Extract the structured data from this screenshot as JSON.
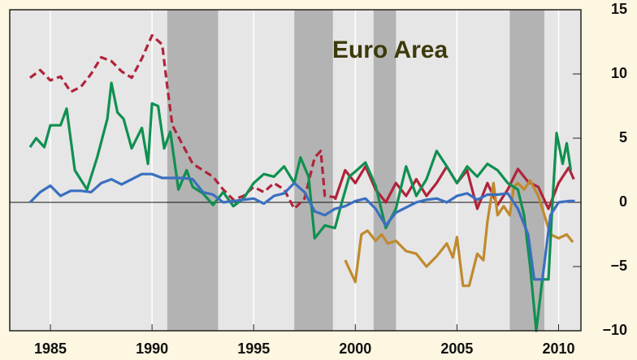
{
  "chart_data": {
    "type": "line",
    "title": "Euro Area",
    "xlim": [
      1983,
      2011.1
    ],
    "xticks": [
      1985,
      1990,
      1995,
      2000,
      2005,
      2010
    ],
    "ylim": [
      -10,
      15
    ],
    "yticks": [
      {
        "value": -10,
        "label": "−10"
      },
      {
        "value": -5,
        "label": "−5"
      },
      0,
      5,
      10,
      15
    ],
    "grid": true,
    "shade_color": "#b3b3b3",
    "shaded_periods": [
      [
        1990.75,
        1993.25
      ],
      [
        1997,
        1998.9
      ],
      [
        2000.9,
        2002
      ],
      [
        2007.6,
        2009.3
      ]
    ],
    "series": [
      {
        "color": "#b0243a",
        "style": "dashed",
        "x": [
          1984,
          1984.5,
          1985,
          1985.5,
          1986,
          1986.5,
          1987,
          1987.5,
          1988,
          1988.5,
          1989,
          1989.5,
          1990,
          1990.5,
          1990.75,
          1991,
          1991.5,
          1992,
          1992.5,
          1993,
          1993.5,
          1994,
          1994.5,
          1995,
          1995.5,
          1996,
          1996.5,
          1997,
          1997.5,
          1998,
          1998.3,
          1998.5,
          1999
        ],
        "values": [
          9.7,
          10.3,
          9.5,
          9.8,
          8.6,
          9,
          10,
          11.3,
          11,
          10.2,
          9.7,
          11.2,
          13,
          12.3,
          9,
          6,
          4.5,
          3,
          2.5,
          2,
          1,
          0.2,
          0.5,
          1.2,
          0.8,
          1.5,
          1,
          -0.5,
          0.3,
          3.5,
          4,
          0.5,
          0.4
        ]
      },
      {
        "color": "#b0243a",
        "style": "solid",
        "x": [
          1999,
          1999.5,
          2000,
          2000.5,
          2001,
          2001.5,
          2002,
          2002.5,
          2003,
          2003.5,
          2004,
          2004.5,
          2005,
          2005.5,
          2006,
          2006.5,
          2007,
          2007.5,
          2008,
          2008.5,
          2009,
          2009.5,
          2010,
          2010.5,
          2010.75
        ],
        "values": [
          0.2,
          2.5,
          1.5,
          2.8,
          1,
          0,
          1.5,
          0.5,
          1.8,
          0.5,
          1.5,
          2.8,
          1.5,
          2.5,
          -0.5,
          1.5,
          -0.2,
          1,
          2.6,
          1.6,
          1.2,
          -0.5,
          1.5,
          2.7,
          1.8
        ]
      },
      {
        "color": "#c08a2e",
        "style": "solid",
        "x": [
          1999.5,
          2000,
          2000.3,
          2000.6,
          2001,
          2001.3,
          2001.6,
          2002,
          2002.5,
          2003,
          2003.5,
          2004,
          2004.5,
          2004.8,
          2005,
          2005.3,
          2005.6,
          2006,
          2006.3,
          2006.5,
          2006.8,
          2007,
          2007.3,
          2007.6,
          2007.8,
          2008,
          2008.3,
          2008.6,
          2009,
          2009.3,
          2009.6,
          2010,
          2010.4,
          2010.7
        ],
        "values": [
          -4.5,
          -6.2,
          -2.5,
          -2.2,
          -3,
          -2.5,
          -3.2,
          -3,
          -3.8,
          -4,
          -5,
          -4.2,
          -3.2,
          -4.3,
          -2.7,
          -6.5,
          -6.5,
          -4,
          -4.5,
          -1.5,
          1.5,
          -1,
          -0.3,
          -1,
          1.2,
          1.5,
          1,
          1.7,
          0.5,
          -1,
          -2.5,
          -2.8,
          -2.5,
          -3.1
        ]
      },
      {
        "color": "#109050",
        "style": "solid",
        "x": [
          1984,
          1984.3,
          1984.7,
          1985,
          1985.5,
          1985.8,
          1986.2,
          1986.8,
          1987.3,
          1987.8,
          1988,
          1988.3,
          1988.6,
          1989,
          1989.5,
          1989.8,
          1990,
          1990.3,
          1990.6,
          1990.9,
          1991.3,
          1991.7,
          1992,
          1992.5,
          1993,
          1993.5,
          1994,
          1994.5,
          1995,
          1995.5,
          1996,
          1996.5,
          1997,
          1997.3,
          1997.7,
          1998,
          1998.5,
          1999,
          1999.3,
          1999.7,
          2000,
          2000.5,
          2001,
          2001.5,
          2002,
          2002.5,
          2003,
          2003.5,
          2004,
          2004.5,
          2005,
          2005.5,
          2006,
          2006.5,
          2007,
          2007.5,
          2008,
          2008.3,
          2008.6,
          2008.9,
          2009.2,
          2009.5,
          2009.7,
          2009.9,
          2010.2,
          2010.4,
          2010.6
        ],
        "values": [
          4.3,
          5,
          4.3,
          6,
          6,
          7.3,
          2.5,
          1,
          3.5,
          6.5,
          9.3,
          7,
          6.5,
          4.2,
          5.8,
          3,
          7.7,
          7.5,
          4.2,
          5.5,
          1,
          2.5,
          1.2,
          0.7,
          -0.2,
          0.8,
          -0.3,
          0.3,
          1.5,
          2.2,
          2,
          2.8,
          1.5,
          3.5,
          2,
          -2.8,
          -1.8,
          -2,
          -0.2,
          2,
          2.4,
          3.1,
          1.3,
          -2,
          -0.5,
          2.8,
          0.5,
          1.8,
          4,
          2.8,
          1.5,
          2.8,
          2,
          3,
          2.5,
          1.5,
          1,
          -1,
          -5,
          -10,
          -6,
          -6,
          0,
          5.4,
          3,
          4.6,
          2.5
        ]
      },
      {
        "color": "#3a6fc0",
        "style": "solid",
        "x": [
          1984,
          1984.5,
          1985,
          1985.5,
          1986,
          1986.5,
          1987,
          1987.5,
          1988,
          1988.5,
          1989,
          1989.5,
          1990,
          1990.5,
          1991,
          1991.5,
          1992,
          1992.5,
          1993,
          1993.5,
          1994,
          1994.5,
          1995,
          1995.5,
          1996,
          1996.5,
          1997,
          1997.5,
          1998,
          1998.5,
          1999,
          1999.5,
          2000,
          2000.5,
          2001,
          2001.5,
          2002,
          2002.5,
          2003,
          2003.5,
          2004,
          2004.5,
          2005,
          2005.5,
          2006,
          2006.5,
          2007,
          2007.5,
          2008,
          2008.5,
          2008.8,
          2009.2,
          2009.6,
          2010,
          2010.5,
          2010.8
        ],
        "values": [
          0,
          0.8,
          1.3,
          0.5,
          0.9,
          0.9,
          0.8,
          1.5,
          1.8,
          1.4,
          1.8,
          2.2,
          2.2,
          1.9,
          1.9,
          1.9,
          1.8,
          0.8,
          0.6,
          0,
          0.1,
          0.2,
          0.3,
          -0.1,
          0.5,
          0.7,
          1.5,
          0.8,
          -0.7,
          -1,
          -0.5,
          -0.3,
          0.1,
          0.3,
          -0.5,
          -1.8,
          -0.8,
          -0.4,
          0,
          0.2,
          0.3,
          0,
          0.5,
          0.7,
          0.2,
          0.6,
          0.6,
          0.7,
          -0.5,
          -2.5,
          -6,
          -6,
          -1,
          0,
          0.1,
          0.1
        ]
      }
    ]
  }
}
